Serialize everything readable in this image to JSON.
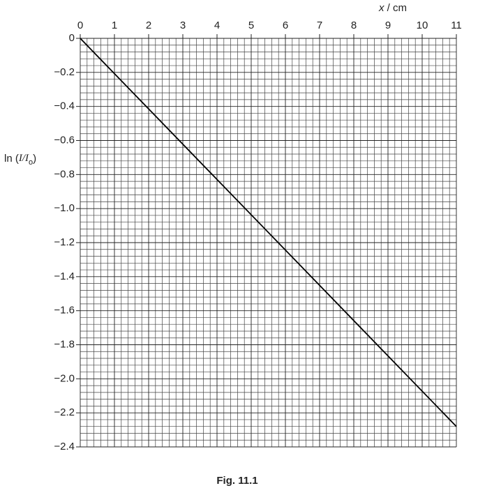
{
  "chart_data": {
    "type": "line",
    "title": "Fig. 11.1",
    "xlabel": [
      "x",
      " / cm"
    ],
    "ylabel": [
      "ln (",
      "I/I",
      "o",
      ")"
    ],
    "x": [
      0,
      11
    ],
    "series": [
      {
        "color": "#000000",
        "values": [
          0,
          -2.28
        ]
      }
    ],
    "xlim": [
      0,
      11
    ],
    "xticks": [
      0,
      1,
      2,
      3,
      4,
      5,
      6,
      7,
      8,
      9,
      10,
      11
    ],
    "ylim": [
      -2.4,
      0
    ],
    "yticks": [
      0,
      {
        "value": -0.2,
        "label": "−0.2"
      },
      {
        "value": -0.4,
        "label": "−0.4"
      },
      {
        "value": -0.6,
        "label": "−0.6"
      },
      {
        "value": -0.8,
        "label": "−0.8"
      },
      {
        "value": -1.0,
        "label": "−1.0"
      },
      {
        "value": -1.2,
        "label": "−1.2"
      },
      {
        "value": -1.4,
        "label": "−1.4"
      },
      {
        "value": -1.6,
        "label": "−1.6"
      },
      {
        "value": -1.8,
        "label": "−1.8"
      },
      {
        "value": -2.0,
        "label": "−2.0"
      },
      {
        "value": -2.2,
        "label": "−2.2"
      },
      {
        "value": -2.4,
        "label": "−2.4"
      }
    ],
    "grid": true
  }
}
